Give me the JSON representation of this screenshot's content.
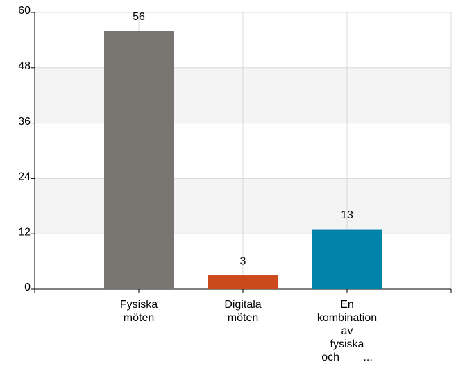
{
  "chart_data": {
    "type": "bar",
    "categories": [
      "Fysiska möten",
      "Digitala möten",
      "En kombination av fysiska och ..."
    ],
    "values": [
      56,
      3,
      13
    ],
    "colors": [
      "#787470",
      "#cc4a1a",
      "#0083a8"
    ],
    "ylim": [
      0,
      60
    ],
    "yticks": [
      0,
      12,
      24,
      36,
      48,
      60
    ],
    "grid": true
  }
}
